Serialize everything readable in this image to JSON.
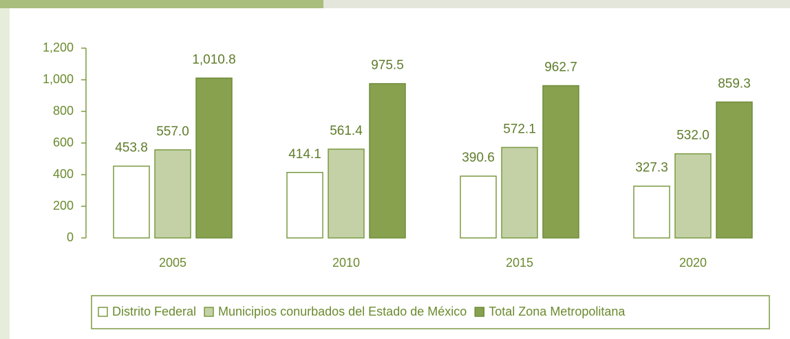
{
  "chart_data": {
    "type": "bar",
    "categories": [
      "2005",
      "2010",
      "2015",
      "2020"
    ],
    "series": [
      {
        "name": "Distrito Federal",
        "color": "#ffffff",
        "stroke": "#7a9a40",
        "values": [
          453.8,
          414.1,
          390.6,
          327.3
        ],
        "value_labels": [
          "453.8",
          "414.1",
          "390.6",
          "327.3"
        ]
      },
      {
        "name": "Municipios conurbados del Estado de México",
        "color": "#c4d1a7",
        "stroke": "#7a9a40",
        "values": [
          557.0,
          561.4,
          572.1,
          532.0
        ],
        "value_labels": [
          "557.0",
          "561.4",
          "572.1",
          "532.0"
        ]
      },
      {
        "name": "Total Zona Metropolitana",
        "color": "#87a14f",
        "stroke": "#6f8c3a",
        "values": [
          1010.8,
          975.5,
          962.7,
          859.3
        ],
        "value_labels": [
          "1,010.8",
          "975.5",
          "962.7",
          "859.3"
        ]
      }
    ],
    "ylim": [
      0,
      1200
    ],
    "yticks": [
      0,
      200,
      400,
      600,
      800,
      {
        "value": 1000,
        "label": "1,000"
      },
      {
        "value": 1200,
        "label": "1,200"
      }
    ],
    "legend": "bottom"
  }
}
